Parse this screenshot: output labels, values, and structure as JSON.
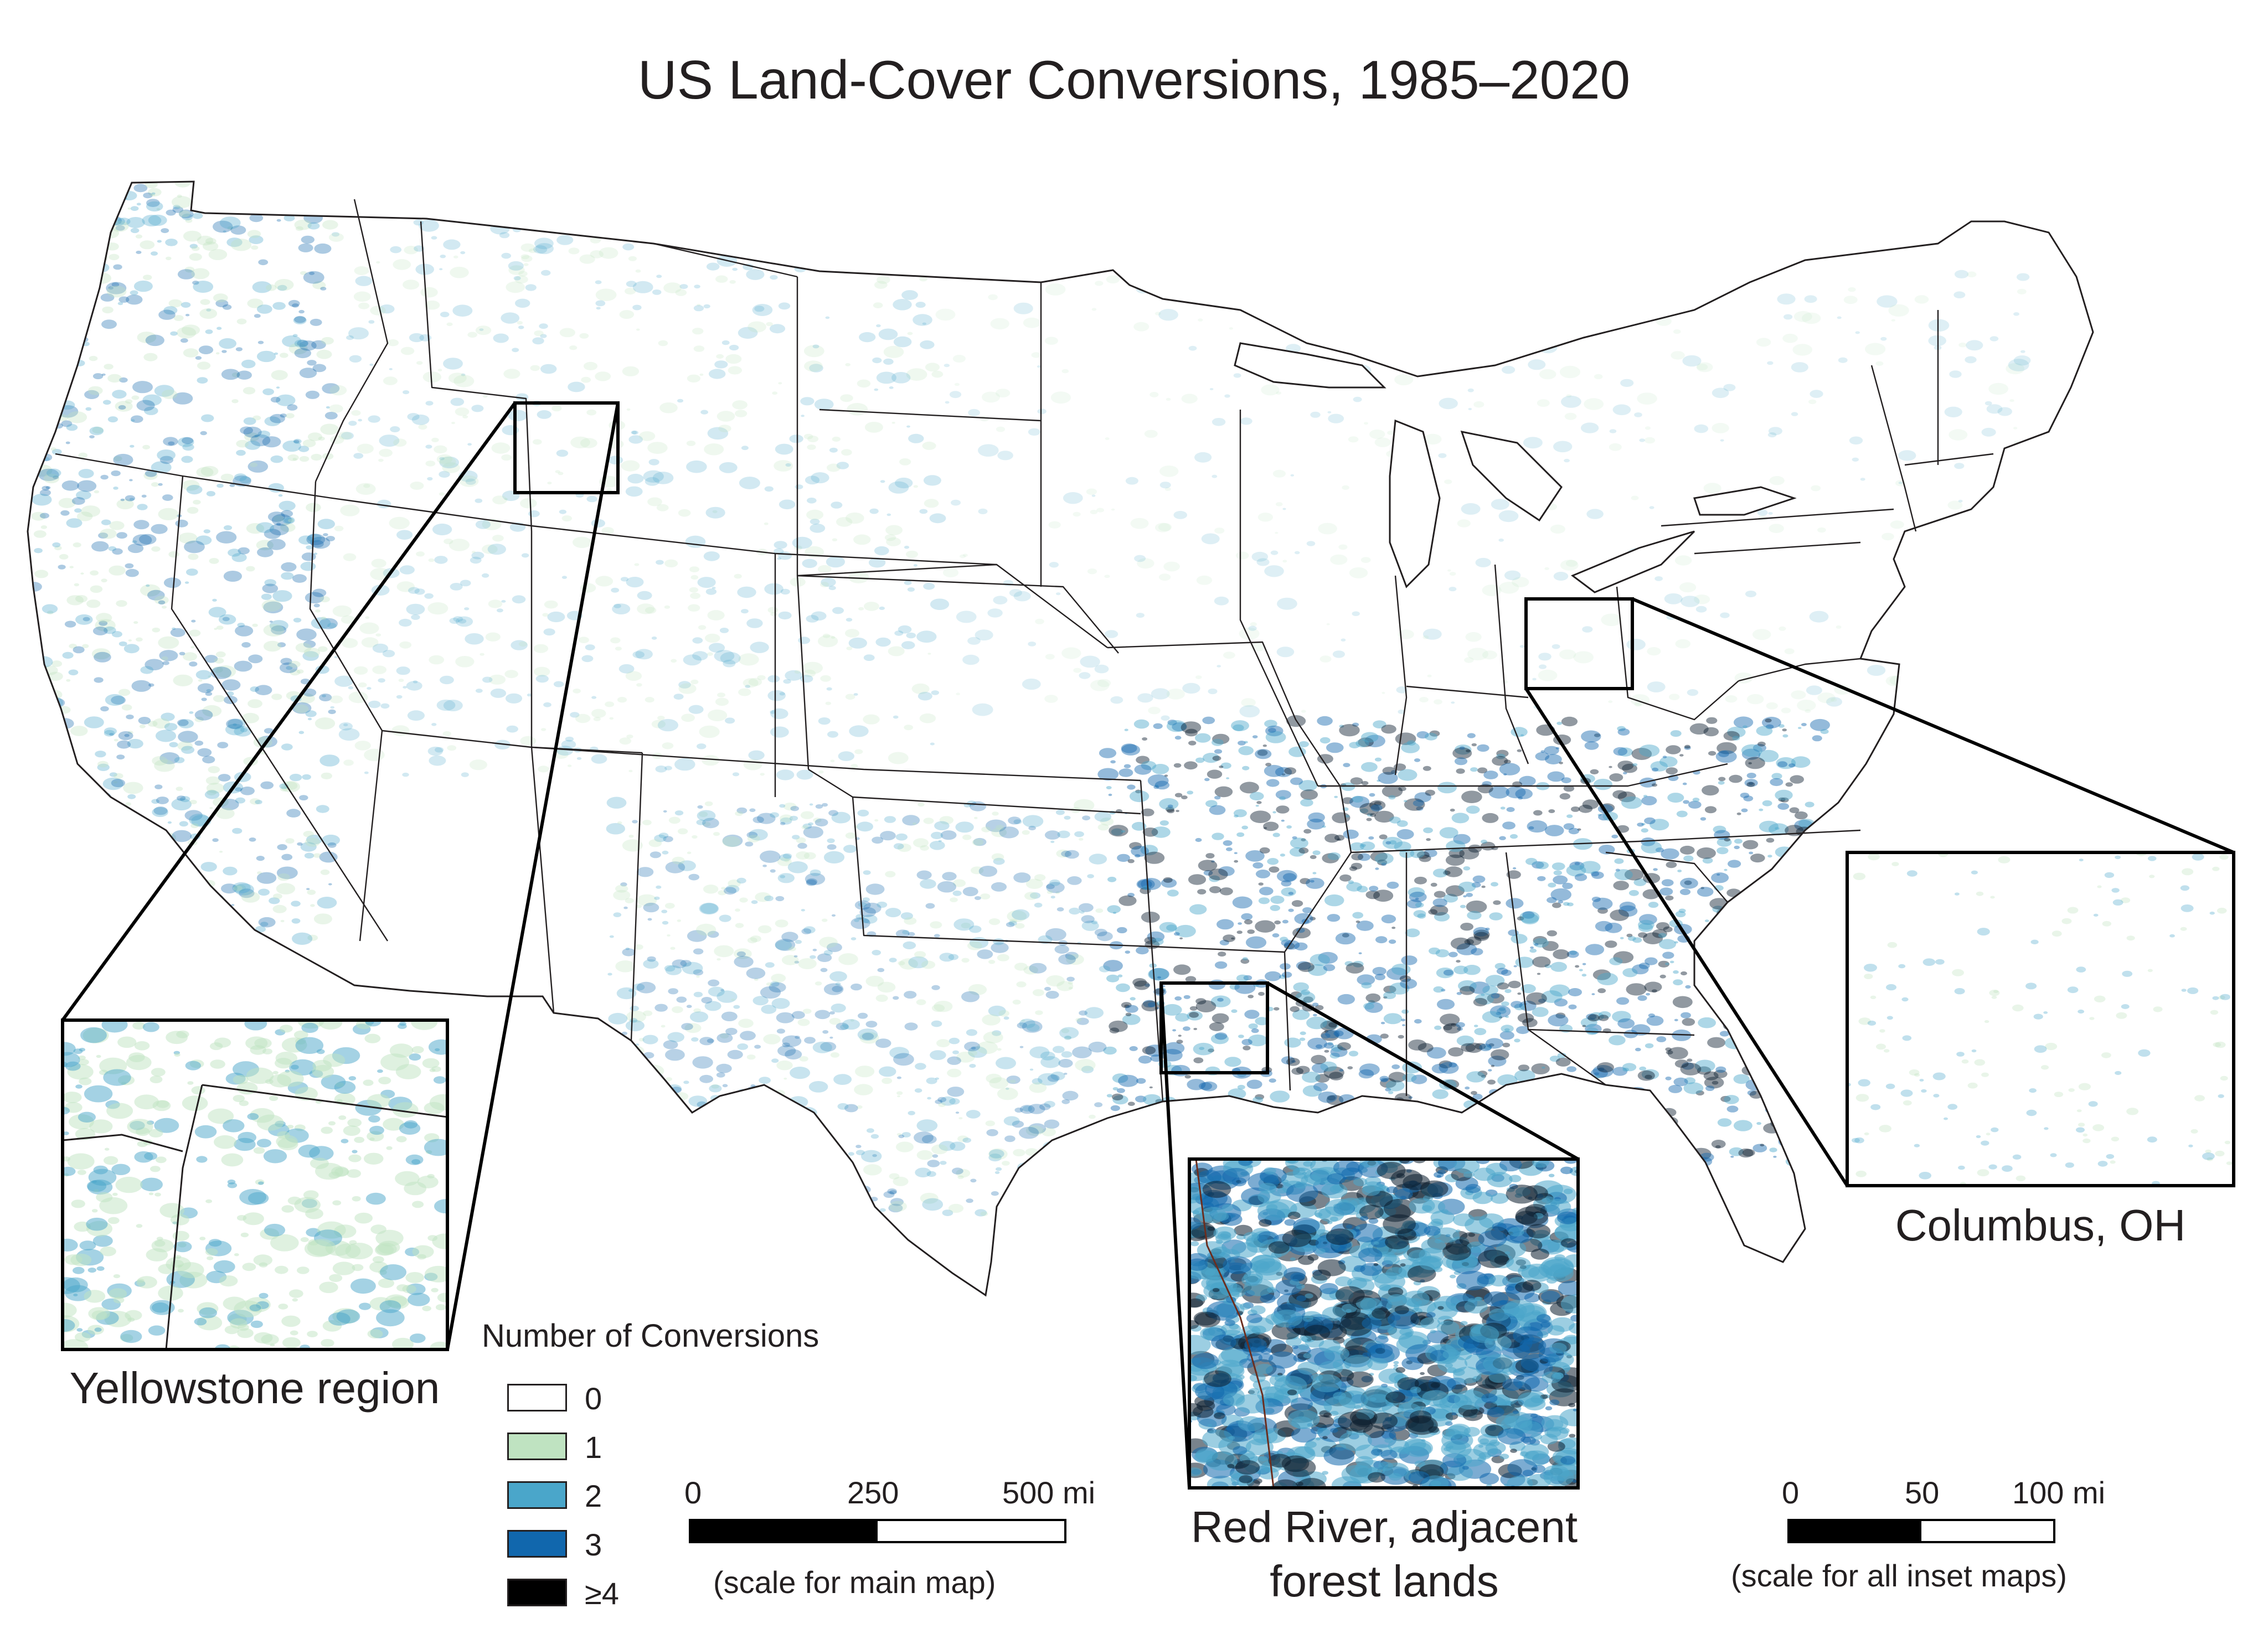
{
  "title": "US Land-Cover Conversions, 1985–2020",
  "legend": {
    "title": "Number of Conversions",
    "items": [
      {
        "label": "0",
        "color": "#ffffff"
      },
      {
        "label": "1",
        "color": "#bfe3c1"
      },
      {
        "label": "2",
        "color": "#4aa6ca"
      },
      {
        "label": "3",
        "color": "#1167ad"
      },
      {
        "label": "≥4",
        "color": "#000000"
      }
    ]
  },
  "main_scale": {
    "ticks": [
      "0",
      "250",
      "500 mi"
    ],
    "note": "(scale for main map)"
  },
  "inset_scale": {
    "ticks": [
      "0",
      "50",
      "100 mi"
    ],
    "note": "(scale for all inset maps)"
  },
  "insets": [
    {
      "id": "yellowstone",
      "label": "Yellowstone region"
    },
    {
      "id": "red-river",
      "label_line1": "Red River, adjacent",
      "label_line2": "forest lands"
    },
    {
      "id": "columbus",
      "label": "Columbus, OH"
    }
  ],
  "colors": {
    "boundary": "#231f20",
    "speckle_light": "#bfe3c1",
    "speckle_mid": "#4aa6ca",
    "speckle_dark": "#1167ad",
    "speckle_black": "#0b1d2e"
  }
}
